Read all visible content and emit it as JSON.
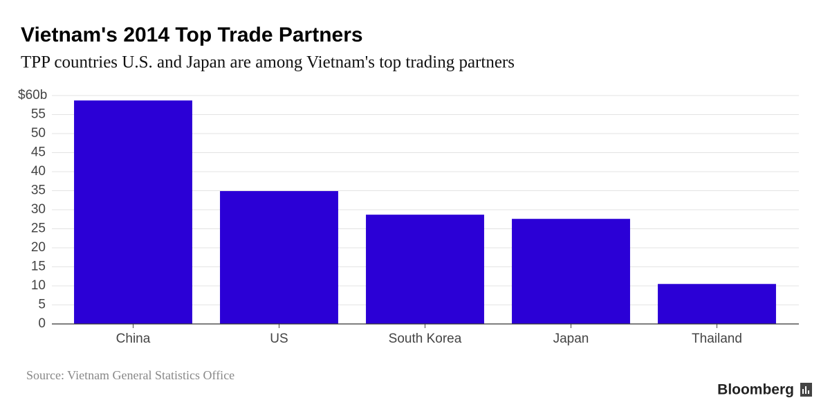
{
  "chart_data": {
    "type": "bar",
    "title": "Vietnam's 2014 Top Trade Partners",
    "subtitle": "TPP countries U.S. and Japan are among Vietnam's top trading partners",
    "categories": [
      "China",
      "US",
      "South Korea",
      "Japan",
      "Thailand"
    ],
    "values": [
      58.7,
      34.9,
      28.7,
      27.6,
      10.5
    ],
    "color": "#2b00d6",
    "ylim": [
      0,
      60
    ],
    "yticks": [
      0,
      5,
      10,
      15,
      20,
      25,
      30,
      35,
      40,
      45,
      50,
      55,
      {
        "value": 60,
        "label": "$60b"
      }
    ],
    "grid": true,
    "source": "Source: Vietnam General Statistics Office",
    "logo": "Bloomberg"
  }
}
